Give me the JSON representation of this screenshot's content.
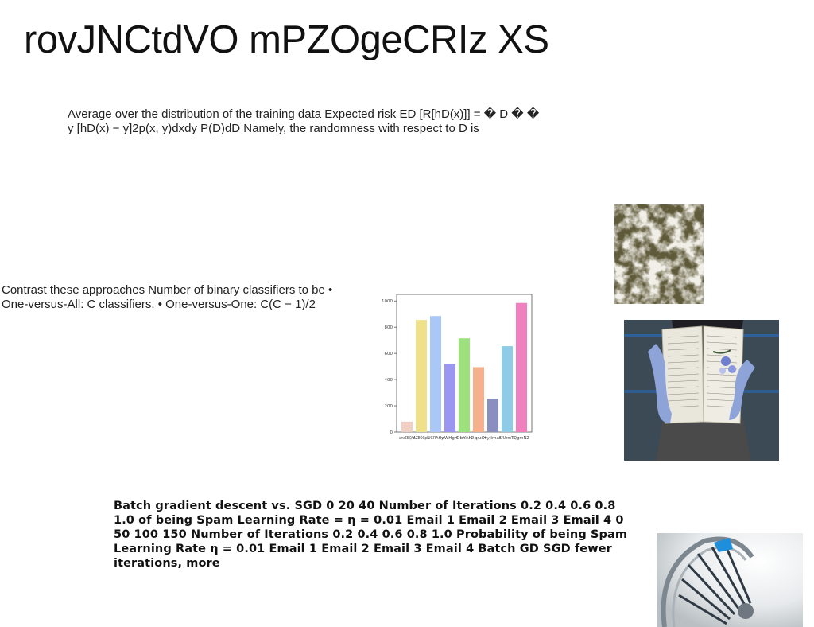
{
  "slide": {
    "title": "rovJNCtdVO mPZOgeCRIz XS",
    "paragraph_1": "Average over the distribution of the training data Expected risk ED [R[hD(x)]] = � D � � y [hD(x) − y]2p(x, y)dxdy P(D)dD Namely, the randomness with respect to D is",
    "paragraph_2": "Contrast these approaches Number of binary classifiers to be • One-versus-All: C classifiers. • One-versus-One: C(C − 1)/2",
    "paragraph_3": "Batch gradient descent vs. SGD 0 20 40 Number of Iterations 0.2 0.4 0.6 0.8 1.0 of being Spam Learning Rate = η = 0.01 Email 1 Email 2 Email 3 Email 4 0 50 100 150 Number of Iterations 0.2 0.4 0.6 0.8 1.0 Probability of being Spam Learning Rate η = 0.01 Email 1 Email 2 Email 3 Email 4 Batch GD SGD fewer iterations, more"
  },
  "images": {
    "foam": "foam-texture-photo",
    "book": "open-book-hands-photo",
    "stairs": "spiral-staircase-photo"
  },
  "chart_data": {
    "type": "bar",
    "categories": [
      "umxZBiQAd",
      "AZEOCpB",
      "UCRAHy",
      "sWHgH",
      "DbYAH",
      "2quiX",
      "ryjImaf",
      "SfUzmTo",
      "QgmNZ"
    ],
    "values": [
      80,
      855,
      885,
      520,
      715,
      495,
      255,
      655,
      985
    ],
    "colors": [
      "#f2cfc4",
      "#efe08a",
      "#a9c8f5",
      "#9b97f0",
      "#9fe07e",
      "#f7b08e",
      "#8a8fbf",
      "#8ecbe6",
      "#ef82be"
    ],
    "yticks": [
      0,
      200,
      400,
      600,
      800,
      1000
    ],
    "ylim": [
      0,
      1050
    ],
    "title": "",
    "xlabel": "",
    "ylabel": "",
    "grid": false
  }
}
